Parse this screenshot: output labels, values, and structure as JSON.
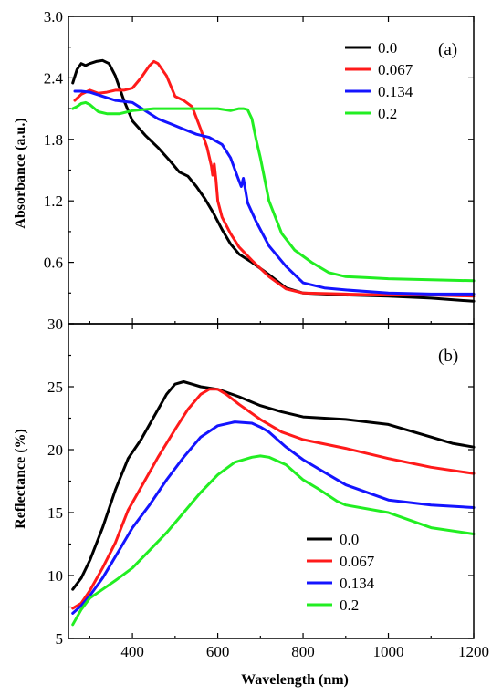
{
  "colors": {
    "s0": "#000000",
    "s1": "#ff1a1a",
    "s2": "#1414ff",
    "s3": "#22ee22"
  },
  "xaxis": {
    "label": "Wavelength (nm)",
    "xlim": [
      250,
      1200
    ],
    "ticks": [
      400,
      600,
      800,
      1000,
      1200
    ]
  },
  "chart_data": [
    {
      "type": "line",
      "panel": "(a)",
      "title": "",
      "xlabel": "",
      "ylabel": "Absorbance (a.u.)",
      "xlim": [
        250,
        1200
      ],
      "ylim": [
        0.0,
        3.0
      ],
      "yticks": [
        0.0,
        0.6,
        1.2,
        1.8,
        2.4,
        3.0
      ],
      "yticklabels": [
        "",
        "0.6",
        "1.2",
        "1.8",
        "2.4",
        "3.0"
      ],
      "legend_position": "top-right",
      "series": [
        {
          "name": "0.0",
          "color": "s0",
          "x": [
            260,
            270,
            280,
            290,
            300,
            315,
            330,
            345,
            360,
            380,
            400,
            430,
            460,
            490,
            510,
            530,
            550,
            570,
            590,
            610,
            630,
            650,
            680,
            720,
            760,
            800,
            900,
            1000,
            1100,
            1200
          ],
          "y": [
            2.35,
            2.48,
            2.54,
            2.52,
            2.54,
            2.56,
            2.57,
            2.54,
            2.42,
            2.18,
            1.98,
            1.84,
            1.72,
            1.58,
            1.48,
            1.44,
            1.34,
            1.22,
            1.08,
            0.92,
            0.78,
            0.68,
            0.6,
            0.48,
            0.35,
            0.3,
            0.28,
            0.27,
            0.25,
            0.22
          ]
        },
        {
          "name": "0.067",
          "color": "s1",
          "x": [
            265,
            280,
            300,
            320,
            340,
            360,
            380,
            400,
            420,
            440,
            450,
            460,
            480,
            500,
            520,
            540,
            560,
            575,
            585,
            588,
            592,
            596,
            600,
            610,
            630,
            650,
            680,
            720,
            760,
            800,
            900,
            1000,
            1100,
            1200
          ],
          "y": [
            2.18,
            2.24,
            2.28,
            2.25,
            2.26,
            2.28,
            2.28,
            2.3,
            2.4,
            2.52,
            2.56,
            2.54,
            2.42,
            2.22,
            2.18,
            2.12,
            1.9,
            1.72,
            1.54,
            1.45,
            1.56,
            1.4,
            1.2,
            1.04,
            0.88,
            0.75,
            0.62,
            0.46,
            0.34,
            0.3,
            0.29,
            0.28,
            0.28,
            0.27
          ]
        },
        {
          "name": "0.134",
          "color": "s2",
          "x": [
            265,
            280,
            300,
            330,
            360,
            400,
            430,
            460,
            490,
            520,
            550,
            580,
            610,
            630,
            645,
            655,
            660,
            665,
            670,
            690,
            720,
            760,
            800,
            850,
            900,
            1000,
            1100,
            1200
          ],
          "y": [
            2.27,
            2.27,
            2.26,
            2.22,
            2.18,
            2.16,
            2.08,
            2.0,
            1.95,
            1.9,
            1.85,
            1.82,
            1.75,
            1.62,
            1.45,
            1.34,
            1.42,
            1.3,
            1.18,
            1.0,
            0.76,
            0.56,
            0.4,
            0.35,
            0.33,
            0.3,
            0.29,
            0.29
          ]
        },
        {
          "name": "0.2",
          "color": "s3",
          "x": [
            260,
            270,
            280,
            290,
            300,
            320,
            340,
            370,
            400,
            450,
            500,
            550,
            600,
            630,
            650,
            660,
            670,
            680,
            690,
            700,
            720,
            750,
            780,
            820,
            860,
            900,
            950,
            1000,
            1100,
            1200
          ],
          "y": [
            2.1,
            2.12,
            2.15,
            2.16,
            2.14,
            2.07,
            2.05,
            2.05,
            2.08,
            2.1,
            2.1,
            2.1,
            2.1,
            2.08,
            2.1,
            2.1,
            2.09,
            2.0,
            1.8,
            1.62,
            1.2,
            0.88,
            0.72,
            0.6,
            0.5,
            0.46,
            0.45,
            0.44,
            0.43,
            0.42
          ]
        }
      ]
    },
    {
      "type": "line",
      "panel": "(b)",
      "title": "",
      "xlabel": "Wavelength (nm)",
      "ylabel": "Reflectance (%)",
      "xlim": [
        250,
        1200
      ],
      "ylim": [
        5,
        30
      ],
      "yticks": [
        5,
        10,
        15,
        20,
        25,
        30
      ],
      "yticklabels": [
        "5",
        "10",
        "15",
        "20",
        "25",
        "30"
      ],
      "legend_position": "bottom-right",
      "series": [
        {
          "name": "0.0",
          "color": "s0",
          "x": [
            260,
            280,
            300,
            330,
            360,
            390,
            420,
            450,
            480,
            500,
            520,
            540,
            560,
            600,
            650,
            700,
            750,
            800,
            900,
            1000,
            1100,
            1150,
            1200
          ],
          "y": [
            8.9,
            9.8,
            11.2,
            13.8,
            16.8,
            19.3,
            20.8,
            22.6,
            24.4,
            25.2,
            25.4,
            25.2,
            25.0,
            24.8,
            24.2,
            23.5,
            23.0,
            22.6,
            22.4,
            22.0,
            21.0,
            20.5,
            20.2
          ]
        },
        {
          "name": "0.067",
          "color": "s1",
          "x": [
            260,
            280,
            300,
            330,
            360,
            390,
            420,
            460,
            500,
            530,
            560,
            580,
            600,
            620,
            650,
            700,
            750,
            800,
            900,
            1000,
            1100,
            1200
          ],
          "y": [
            7.4,
            7.8,
            8.8,
            10.6,
            12.6,
            15.2,
            17.0,
            19.4,
            21.6,
            23.2,
            24.4,
            24.8,
            24.8,
            24.4,
            23.6,
            22.4,
            21.4,
            20.8,
            20.1,
            19.3,
            18.6,
            18.1
          ]
        },
        {
          "name": "0.134",
          "color": "s2",
          "x": [
            260,
            280,
            300,
            330,
            360,
            400,
            440,
            480,
            520,
            560,
            600,
            640,
            680,
            700,
            720,
            760,
            800,
            860,
            900,
            1000,
            1100,
            1200
          ],
          "y": [
            7.0,
            7.6,
            8.4,
            9.8,
            11.5,
            13.8,
            15.6,
            17.6,
            19.4,
            21.0,
            21.9,
            22.2,
            22.1,
            21.8,
            21.4,
            20.2,
            19.2,
            18.0,
            17.2,
            16.0,
            15.6,
            15.4
          ]
        },
        {
          "name": "0.2",
          "color": "s3",
          "x": [
            260,
            280,
            300,
            330,
            360,
            400,
            440,
            480,
            520,
            560,
            600,
            640,
            680,
            700,
            720,
            760,
            800,
            840,
            880,
            900,
            1000,
            1050,
            1100,
            1200
          ],
          "y": [
            6.1,
            7.3,
            8.2,
            8.9,
            9.6,
            10.6,
            12.0,
            13.4,
            15.0,
            16.6,
            18.0,
            19.0,
            19.4,
            19.5,
            19.4,
            18.8,
            17.6,
            16.8,
            15.9,
            15.6,
            15.0,
            14.4,
            13.8,
            13.3
          ]
        }
      ]
    }
  ]
}
